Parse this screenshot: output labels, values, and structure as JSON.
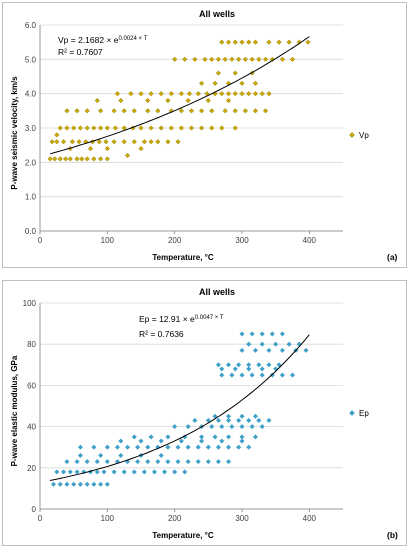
{
  "chart_data": [
    {
      "type": "scatter",
      "title": "All wells",
      "xlabel": "Temperature, °C",
      "ylabel": "P-wave seismic velocity, km/s",
      "xlim": [
        0,
        450
      ],
      "ylim": [
        0.0,
        6.0
      ],
      "x_ticks": [
        "0",
        "100",
        "200",
        "300",
        "400"
      ],
      "y_ticks": [
        "0.0",
        "1.0",
        "2.0",
        "3.0",
        "4.0",
        "5.0",
        "6.0"
      ],
      "legend": [
        "Vp"
      ],
      "legend_position": "right",
      "marker": "diamond",
      "color": "#c9a800",
      "equation": "Vp = 2.1682 × e",
      "equation_exp": "0.0024 × T",
      "r2": "R² = 0.7607",
      "trend": {
        "type": "exponential",
        "a": 2.1682,
        "b": 0.0024,
        "x_range": [
          15,
          400
        ]
      },
      "panel_label": "(a)",
      "series": [
        {
          "name": "Vp",
          "points": [
            [
              15,
              2.1
            ],
            [
              22,
              2.1
            ],
            [
              30,
              2.1
            ],
            [
              38,
              2.1
            ],
            [
              45,
              2.1
            ],
            [
              55,
              2.1
            ],
            [
              62,
              2.1
            ],
            [
              70,
              2.1
            ],
            [
              80,
              2.1
            ],
            [
              90,
              2.1
            ],
            [
              100,
              2.1
            ],
            [
              18,
              2.6
            ],
            [
              25,
              2.6
            ],
            [
              35,
              2.6
            ],
            [
              48,
              2.6
            ],
            [
              58,
              2.6
            ],
            [
              68,
              2.6
            ],
            [
              78,
              2.6
            ],
            [
              88,
              2.6
            ],
            [
              98,
              2.6
            ],
            [
              110,
              2.6
            ],
            [
              125,
              2.6
            ],
            [
              140,
              2.6
            ],
            [
              155,
              2.6
            ],
            [
              165,
              2.6
            ],
            [
              175,
              2.6
            ],
            [
              190,
              2.6
            ],
            [
              205,
              2.6
            ],
            [
              30,
              3.0
            ],
            [
              40,
              3.0
            ],
            [
              50,
              3.0
            ],
            [
              60,
              3.0
            ],
            [
              70,
              3.0
            ],
            [
              80,
              3.0
            ],
            [
              90,
              3.0
            ],
            [
              100,
              3.0
            ],
            [
              112,
              3.0
            ],
            [
              125,
              3.0
            ],
            [
              138,
              3.0
            ],
            [
              150,
              3.0
            ],
            [
              165,
              3.0
            ],
            [
              180,
              3.0
            ],
            [
              195,
              3.0
            ],
            [
              210,
              3.0
            ],
            [
              225,
              3.0
            ],
            [
              240,
              3.0
            ],
            [
              255,
              3.0
            ],
            [
              270,
              3.0
            ],
            [
              290,
              3.0
            ],
            [
              25,
              2.8
            ],
            [
              45,
              2.4
            ],
            [
              75,
              2.4
            ],
            [
              100,
              2.4
            ],
            [
              130,
              2.2
            ],
            [
              150,
              2.4
            ],
            [
              40,
              3.5
            ],
            [
              55,
              3.5
            ],
            [
              70,
              3.5
            ],
            [
              90,
              3.5
            ],
            [
              110,
              3.5
            ],
            [
              125,
              3.5
            ],
            [
              140,
              3.5
            ],
            [
              160,
              3.5
            ],
            [
              175,
              3.5
            ],
            [
              195,
              3.5
            ],
            [
              210,
              3.5
            ],
            [
              225,
              3.5
            ],
            [
              240,
              3.5
            ],
            [
              255,
              3.5
            ],
            [
              275,
              3.5
            ],
            [
              290,
              3.5
            ],
            [
              305,
              3.5
            ],
            [
              320,
              3.5
            ],
            [
              335,
              3.5
            ],
            [
              85,
              3.8
            ],
            [
              120,
              3.8
            ],
            [
              160,
              3.8
            ],
            [
              190,
              3.8
            ],
            [
              220,
              3.8
            ],
            [
              250,
              3.8
            ],
            [
              280,
              3.8
            ],
            [
              115,
              4.0
            ],
            [
              135,
              4.0
            ],
            [
              150,
              4.0
            ],
            [
              165,
              4.0
            ],
            [
              180,
              4.0
            ],
            [
              195,
              4.0
            ],
            [
              210,
              4.0
            ],
            [
              222,
              4.0
            ],
            [
              235,
              4.0
            ],
            [
              248,
              4.0
            ],
            [
              260,
              4.0
            ],
            [
              270,
              4.0
            ],
            [
              280,
              4.0
            ],
            [
              290,
              4.0
            ],
            [
              300,
              4.0
            ],
            [
              310,
              4.0
            ],
            [
              320,
              4.0
            ],
            [
              330,
              4.0
            ],
            [
              340,
              4.0
            ],
            [
              240,
              4.3
            ],
            [
              260,
              4.3
            ],
            [
              280,
              4.3
            ],
            [
              300,
              4.3
            ],
            [
              320,
              4.3
            ],
            [
              265,
              4.6
            ],
            [
              290,
              4.6
            ],
            [
              315,
              4.6
            ],
            [
              200,
              5.0
            ],
            [
              215,
              5.0
            ],
            [
              230,
              5.0
            ],
            [
              245,
              5.0
            ],
            [
              255,
              5.0
            ],
            [
              265,
              5.0
            ],
            [
              275,
              5.0
            ],
            [
              285,
              5.0
            ],
            [
              295,
              5.0
            ],
            [
              305,
              5.0
            ],
            [
              315,
              5.0
            ],
            [
              325,
              5.0
            ],
            [
              335,
              5.0
            ],
            [
              345,
              5.0
            ],
            [
              360,
              5.0
            ],
            [
              375,
              5.0
            ],
            [
              270,
              5.5
            ],
            [
              280,
              5.5
            ],
            [
              290,
              5.5
            ],
            [
              300,
              5.5
            ],
            [
              310,
              5.5
            ],
            [
              320,
              5.5
            ],
            [
              340,
              5.5
            ],
            [
              355,
              5.5
            ],
            [
              370,
              5.5
            ],
            [
              385,
              5.5
            ],
            [
              398,
              5.5
            ]
          ]
        }
      ]
    },
    {
      "type": "scatter",
      "title": "All wells",
      "xlabel": "Temperature, °C",
      "ylabel": "P-wave elastic modulus, GPa",
      "xlim": [
        0,
        450
      ],
      "ylim": [
        0,
        100
      ],
      "x_ticks": [
        "0",
        "100",
        "200",
        "300",
        "400"
      ],
      "y_ticks": [
        "0",
        "20",
        "40",
        "60",
        "80",
        "100"
      ],
      "legend": [
        "Ep"
      ],
      "legend_position": "right",
      "marker": "diamond",
      "color": "#3ea0c8",
      "equation": "Ep = 12.91 × e",
      "equation_exp": "0.0047 × T",
      "r2": "R² = 0.7636",
      "trend": {
        "type": "exponential",
        "a": 12.91,
        "b": 0.0047,
        "x_range": [
          15,
          400
        ]
      },
      "panel_label": "(b)",
      "series": [
        {
          "name": "Ep",
          "points": [
            [
              20,
              12
            ],
            [
              30,
              12
            ],
            [
              40,
              12
            ],
            [
              50,
              12
            ],
            [
              60,
              12
            ],
            [
              70,
              12
            ],
            [
              80,
              12
            ],
            [
              90,
              12
            ],
            [
              100,
              12
            ],
            [
              25,
              18
            ],
            [
              35,
              18
            ],
            [
              45,
              18
            ],
            [
              55,
              18
            ],
            [
              65,
              18
            ],
            [
              75,
              18
            ],
            [
              85,
              18
            ],
            [
              95,
              18
            ],
            [
              110,
              18
            ],
            [
              125,
              18
            ],
            [
              140,
              18
            ],
            [
              155,
              18
            ],
            [
              170,
              18
            ],
            [
              185,
              18
            ],
            [
              200,
              18
            ],
            [
              215,
              18
            ],
            [
              40,
              23
            ],
            [
              55,
              23
            ],
            [
              70,
              23
            ],
            [
              85,
              23
            ],
            [
              100,
              23
            ],
            [
              115,
              23
            ],
            [
              130,
              23
            ],
            [
              145,
              23
            ],
            [
              160,
              23
            ],
            [
              175,
              23
            ],
            [
              190,
              23
            ],
            [
              205,
              23
            ],
            [
              220,
              23
            ],
            [
              235,
              23
            ],
            [
              250,
              23
            ],
            [
              265,
              23
            ],
            [
              280,
              23
            ],
            [
              60,
              26
            ],
            [
              90,
              26
            ],
            [
              120,
              26
            ],
            [
              150,
              26
            ],
            [
              180,
              26
            ],
            [
              60,
              30
            ],
            [
              80,
              30
            ],
            [
              100,
              30
            ],
            [
              115,
              30
            ],
            [
              130,
              30
            ],
            [
              145,
              30
            ],
            [
              160,
              30
            ],
            [
              175,
              30
            ],
            [
              190,
              30
            ],
            [
              205,
              30
            ],
            [
              220,
              30
            ],
            [
              235,
              30
            ],
            [
              250,
              30
            ],
            [
              265,
              30
            ],
            [
              280,
              30
            ],
            [
              295,
              30
            ],
            [
              310,
              30
            ],
            [
              120,
              33
            ],
            [
              150,
              33
            ],
            [
              180,
              33
            ],
            [
              210,
              33
            ],
            [
              240,
              33
            ],
            [
              270,
              33
            ],
            [
              300,
              33
            ],
            [
              140,
              35
            ],
            [
              165,
              35
            ],
            [
              190,
              35
            ],
            [
              215,
              35
            ],
            [
              240,
              35
            ],
            [
              260,
              35
            ],
            [
              280,
              35
            ],
            [
              300,
              35
            ],
            [
              320,
              35
            ],
            [
              200,
              40
            ],
            [
              220,
              40
            ],
            [
              240,
              40
            ],
            [
              255,
              40
            ],
            [
              270,
              40
            ],
            [
              285,
              40
            ],
            [
              300,
              40
            ],
            [
              315,
              40
            ],
            [
              330,
              40
            ],
            [
              230,
              43
            ],
            [
              250,
              43
            ],
            [
              265,
              43
            ],
            [
              280,
              43
            ],
            [
              295,
              43
            ],
            [
              310,
              43
            ],
            [
              325,
              43
            ],
            [
              340,
              43
            ],
            [
              260,
              45
            ],
            [
              280,
              45
            ],
            [
              300,
              45
            ],
            [
              320,
              45
            ],
            [
              270,
              65
            ],
            [
              285,
              65
            ],
            [
              300,
              65
            ],
            [
              315,
              65
            ],
            [
              330,
              65
            ],
            [
              345,
              65
            ],
            [
              360,
              65
            ],
            [
              375,
              65
            ],
            [
              270,
              68
            ],
            [
              290,
              68
            ],
            [
              310,
              68
            ],
            [
              330,
              68
            ],
            [
              350,
              68
            ],
            [
              265,
              70
            ],
            [
              280,
              70
            ],
            [
              295,
              70
            ],
            [
              310,
              70
            ],
            [
              325,
              70
            ],
            [
              340,
              70
            ],
            [
              355,
              70
            ],
            [
              300,
              77
            ],
            [
              320,
              77
            ],
            [
              340,
              77
            ],
            [
              360,
              77
            ],
            [
              380,
              77
            ],
            [
              395,
              77
            ],
            [
              310,
              80
            ],
            [
              330,
              80
            ],
            [
              350,
              80
            ],
            [
              370,
              80
            ],
            [
              385,
              80
            ],
            [
              300,
              85
            ],
            [
              315,
              85
            ],
            [
              330,
              85
            ],
            [
              345,
              85
            ],
            [
              360,
              85
            ]
          ]
        }
      ]
    }
  ]
}
